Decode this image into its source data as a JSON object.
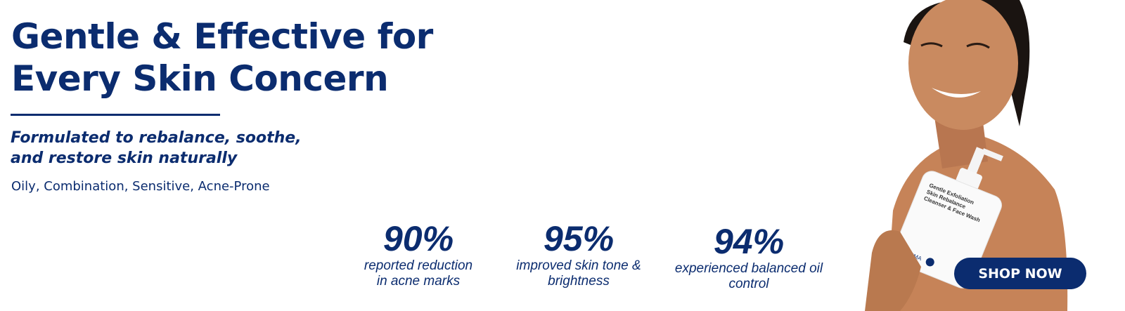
{
  "hero": {
    "headline_lines": [
      "Gentle & Effective for",
      "Every Skin Concern"
    ],
    "subheading_lines": [
      "Formulated to rebalance, soothe,",
      "and restore skin naturally"
    ],
    "skin_types": "Oily, Combination, Sensitive, Acne-Prone"
  },
  "stats": [
    {
      "value": "90%",
      "desc_lines": [
        "reported reduction",
        "in acne marks"
      ]
    },
    {
      "value": "95%",
      "desc_lines": [
        "improved skin tone &",
        "brightness"
      ]
    },
    {
      "value": "94%",
      "desc_lines": [
        "experienced balanced oil",
        "control"
      ]
    }
  ],
  "product": {
    "label_lines": [
      "Gentle Exfoliation",
      "Skin Rebalance",
      "Cleanser & Face Wash"
    ],
    "brand": "DERMA"
  },
  "cta": {
    "label": "SHOP NOW"
  },
  "colors": {
    "brand_navy": "#0b2c6f",
    "background": "#ffffff",
    "skin": "#c68358"
  }
}
